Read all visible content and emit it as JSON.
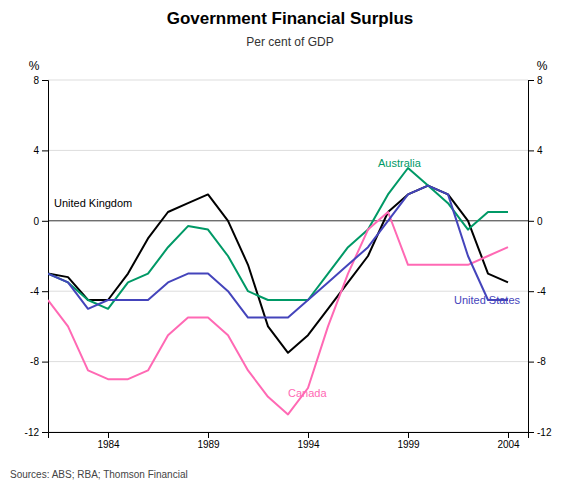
{
  "chart_data": {
    "type": "line",
    "title": "Government Financial Surplus",
    "subtitle": "Per cent of GDP",
    "source": "Sources: ABS; RBA; Thomson Financial",
    "ylabel": "%",
    "y2label": "%",
    "x": [
      1981,
      1982,
      1983,
      1984,
      1985,
      1986,
      1987,
      1988,
      1989,
      1990,
      1991,
      1992,
      1993,
      1994,
      1995,
      1996,
      1997,
      1998,
      1999,
      2000,
      2001,
      2002,
      2003,
      2004
    ],
    "series": [
      {
        "color": "#000000",
        "values": [
          -3.0,
          -3.2,
          -4.5,
          -4.5,
          -3.0,
          -1.0,
          0.5,
          1.0,
          1.5,
          0.0,
          -2.5,
          -6.0,
          -7.5,
          -6.5,
          -5.0,
          -3.5,
          -2.0,
          0.5,
          1.5,
          2.0,
          1.5,
          0.0,
          -3.0,
          -3.5
        ]
      },
      {
        "color": "#009966",
        "values": [
          -3.0,
          -3.5,
          -4.5,
          -5.0,
          -3.5,
          -3.0,
          -1.5,
          -0.3,
          -0.5,
          -2.0,
          -4.0,
          -4.5,
          -4.5,
          -4.5,
          -3.0,
          -1.5,
          -0.5,
          1.5,
          3.0,
          2.0,
          1.0,
          -0.5,
          0.5,
          0.5
        ]
      },
      {
        "color": "#FF69B4",
        "values": [
          -4.5,
          -6.0,
          -8.5,
          -9.0,
          -9.0,
          -8.5,
          -6.5,
          -5.5,
          -5.5,
          -6.5,
          -8.5,
          -10.0,
          -11.0,
          -9.5,
          -6.0,
          -3.0,
          -0.5,
          0.5,
          -2.5,
          -2.5,
          -2.5,
          -2.5,
          -2.0,
          -1.5
        ]
      },
      {
        "color": "#4444BB",
        "values": [
          -3.0,
          -3.5,
          -5.0,
          -4.5,
          -4.5,
          -4.5,
          -3.5,
          -3.0,
          -3.0,
          -4.0,
          -5.5,
          -5.5,
          -5.5,
          -4.5,
          -3.5,
          -2.5,
          -1.5,
          0.0,
          1.5,
          2.0,
          1.5,
          -2.0,
          -4.5,
          -4.5
        ]
      }
    ],
    "annotations": [
      {
        "text": "United Kingdom",
        "x": 1981.3,
        "y": 1.0,
        "color": "#000000"
      },
      {
        "text": "Australia",
        "x": 1997.5,
        "y": 3.3,
        "color": "#009966"
      },
      {
        "text": "Canada",
        "x": 1993.0,
        "y": -9.8,
        "color": "#FF69B4"
      },
      {
        "text": "United States",
        "x": 2001.3,
        "y": -4.5,
        "color": "#4444BB"
      }
    ],
    "xlim": [
      1981,
      2005
    ],
    "xticks": [
      1984,
      1989,
      1994,
      1999,
      2004
    ],
    "ylim": [
      -12,
      8
    ],
    "yticks": [
      -12,
      -8,
      -4,
      0,
      4,
      8
    ],
    "y2lim": [
      -12,
      8
    ],
    "y2ticks": [
      -12,
      -8,
      -4,
      0,
      4,
      8
    ],
    "grid": true
  }
}
